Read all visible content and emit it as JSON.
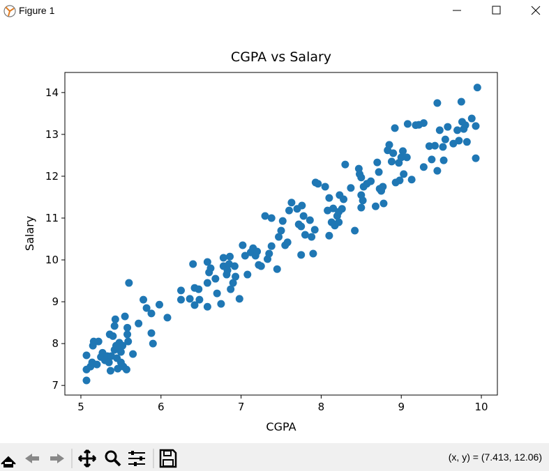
{
  "window": {
    "title": "Figure 1",
    "status": "(x, y) = (7.413, 12.06)"
  },
  "chart_data": {
    "type": "scatter",
    "title": "CGPA vs Salary",
    "x_label": "CGPA",
    "y_label": "Salary",
    "color": "#1f77b4",
    "xlim": [
      4.8,
      10.2
    ],
    "ylim": [
      6.77,
      14.48
    ],
    "xticks": [
      5,
      6,
      7,
      8,
      9,
      10
    ],
    "yticks": [
      7,
      8,
      9,
      10,
      11,
      12,
      13,
      14
    ],
    "x": [
      5.07,
      5.07,
      5.07,
      5.12,
      5.14,
      5.15,
      5.16,
      5.2,
      5.22,
      5.25,
      5.27,
      5.3,
      5.33,
      5.35,
      5.36,
      5.37,
      5.38,
      5.4,
      5.42,
      5.42,
      5.43,
      5.44,
      5.45,
      5.46,
      5.47,
      5.48,
      5.5,
      5.5,
      5.52,
      5.53,
      5.55,
      5.57,
      5.58,
      5.58,
      5.59,
      5.6,
      5.65,
      5.72,
      5.78,
      5.82,
      5.88,
      5.88,
      5.9,
      5.98,
      6.08,
      6.25,
      6.25,
      6.36,
      6.4,
      6.42,
      6.42,
      6.47,
      6.48,
      6.58,
      6.58,
      6.58,
      6.6,
      6.62,
      6.68,
      6.7,
      6.75,
      6.78,
      6.78,
      6.82,
      6.83,
      6.85,
      6.86,
      6.87,
      6.9,
      6.92,
      6.93,
      6.98,
      7.02,
      7.05,
      7.08,
      7.12,
      7.15,
      7.18,
      7.2,
      7.22,
      7.25,
      7.3,
      7.33,
      7.35,
      7.38,
      7.38,
      7.45,
      7.47,
      7.5,
      7.52,
      7.55,
      7.58,
      7.6,
      7.63,
      7.7,
      7.72,
      7.75,
      7.75,
      7.76,
      7.78,
      7.8,
      7.86,
      7.88,
      7.9,
      7.92,
      7.93,
      7.96,
      8.05,
      8.08,
      8.1,
      8.1,
      8.13,
      8.15,
      8.17,
      8.2,
      8.22,
      8.22,
      8.23,
      8.26,
      8.28,
      8.3,
      8.37,
      8.42,
      8.47,
      8.48,
      8.5,
      8.5,
      8.5,
      8.52,
      8.53,
      8.57,
      8.62,
      8.68,
      8.7,
      8.72,
      8.73,
      8.75,
      8.77,
      8.78,
      8.83,
      8.85,
      8.88,
      8.9,
      8.92,
      8.93,
      8.97,
      8.98,
      9.0,
      9.02,
      9.03,
      9.07,
      9.08,
      9.13,
      9.18,
      9.22,
      9.28,
      9.28,
      9.35,
      9.38,
      9.42,
      9.45,
      9.45,
      9.48,
      9.52,
      9.53,
      9.55,
      9.58,
      9.65,
      9.7,
      9.72,
      9.75,
      9.76,
      9.78,
      9.8,
      9.82,
      9.88,
      9.93,
      9.93,
      9.95
    ],
    "y": [
      7.12,
      7.38,
      7.72,
      7.45,
      7.55,
      7.95,
      8.05,
      7.5,
      8.05,
      7.68,
      7.78,
      7.6,
      7.7,
      7.55,
      8.22,
      7.35,
      7.7,
      8.18,
      7.85,
      8.42,
      8.58,
      7.95,
      7.65,
      7.4,
      7.9,
      8.02,
      7.8,
      7.55,
      7.95,
      7.45,
      8.65,
      7.38,
      8.22,
      8.38,
      8.05,
      9.45,
      7.75,
      8.48,
      9.05,
      8.85,
      8.72,
      8.25,
      8.0,
      8.93,
      8.62,
      9.27,
      9.05,
      9.07,
      9.9,
      9.33,
      8.92,
      9.3,
      9.05,
      8.88,
      9.45,
      9.95,
      9.7,
      9.8,
      9.55,
      9.2,
      8.95,
      10.05,
      9.85,
      9.65,
      9.75,
      9.9,
      10.08,
      9.3,
      9.45,
      9.85,
      9.6,
      9.07,
      10.35,
      10.1,
      9.65,
      10.18,
      10.28,
      10.1,
      10.2,
      9.88,
      9.85,
      11.05,
      10.02,
      10.15,
      10.33,
      11.0,
      9.78,
      10.55,
      10.7,
      10.93,
      10.35,
      10.42,
      11.18,
      11.37,
      11.22,
      10.85,
      10.8,
      10.12,
      11.3,
      11.05,
      10.6,
      10.95,
      10.55,
      10.15,
      10.72,
      11.85,
      11.82,
      11.75,
      11.18,
      11.48,
      10.58,
      10.9,
      11.23,
      10.82,
      11.05,
      11.15,
      10.9,
      11.55,
      11.22,
      11.45,
      12.28,
      11.72,
      10.7,
      12.18,
      12.05,
      11.97,
      11.55,
      11.25,
      11.42,
      11.75,
      11.82,
      11.88,
      11.28,
      12.33,
      12.1,
      11.7,
      11.65,
      11.75,
      11.35,
      12.62,
      12.75,
      12.35,
      12.55,
      13.15,
      11.85,
      12.32,
      11.9,
      12.45,
      12.6,
      12.05,
      12.45,
      13.25,
      11.92,
      13.22,
      13.23,
      13.27,
      12.22,
      12.72,
      12.4,
      12.73,
      13.75,
      12.13,
      13.1,
      12.7,
      12.38,
      12.88,
      13.18,
      12.78,
      13.1,
      12.85,
      13.78,
      13.3,
      13.13,
      13.22,
      12.82,
      13.38,
      12.43,
      13.2,
      14.12
    ]
  }
}
